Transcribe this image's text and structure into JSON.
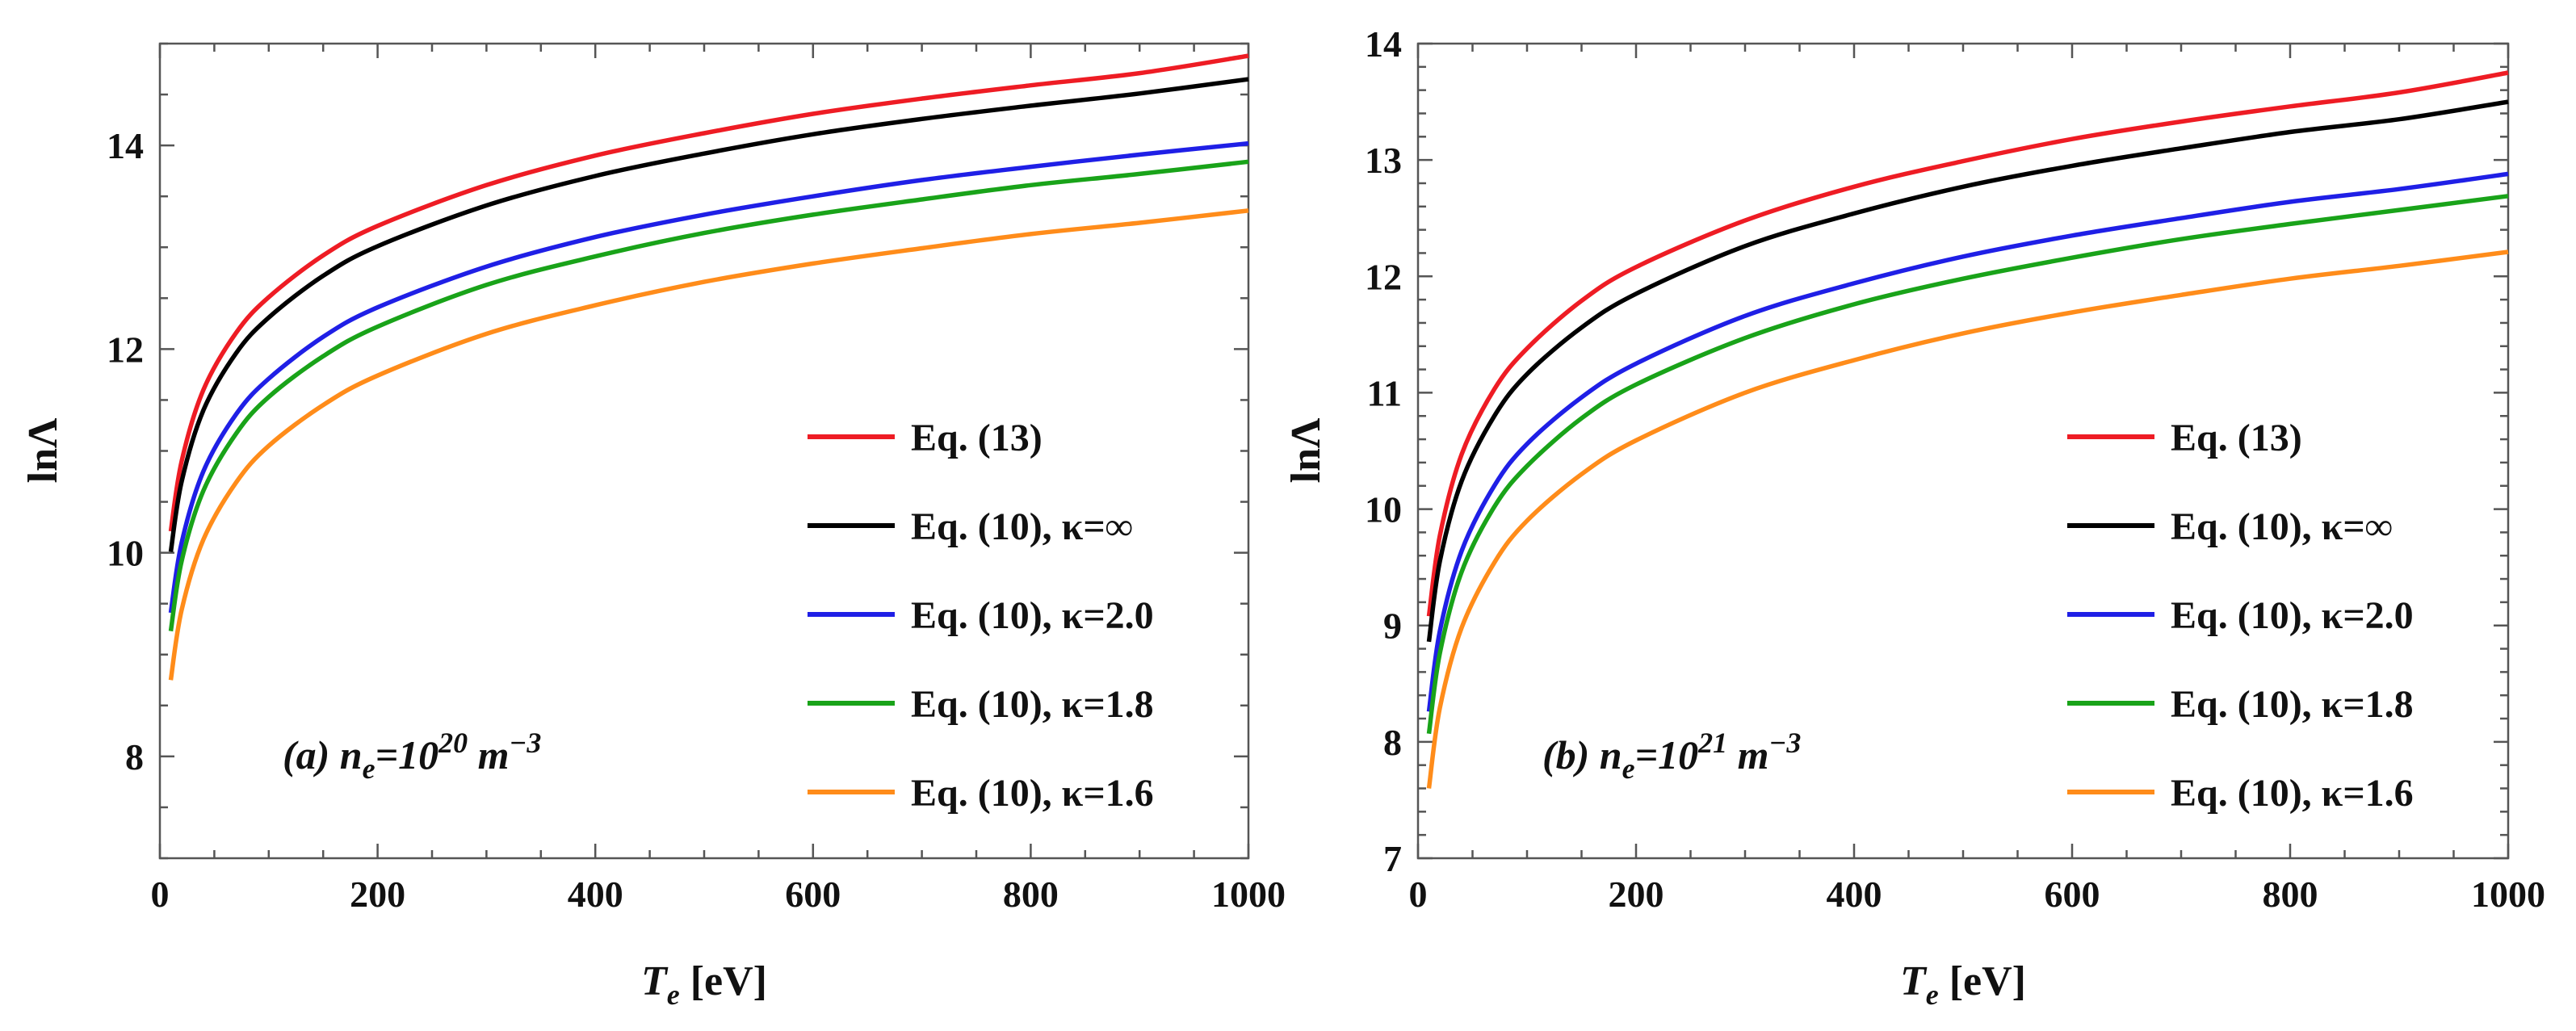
{
  "chart_data": [
    {
      "type": "line",
      "panel_label": {
        "prefix": "(a) n",
        "sub": "e",
        "mid": "=10",
        "sup": "20",
        "unit": " m",
        "unit_sup": "−3"
      },
      "xlabel": {
        "main": "T",
        "sub": "e",
        "rest": " [eV]"
      },
      "ylabel": "lnΛ",
      "xlim": [
        0,
        1000
      ],
      "ylim": [
        7,
        15
      ],
      "xticks": [
        0,
        200,
        400,
        600,
        800,
        1000
      ],
      "yticks": [
        8,
        10,
        12,
        14
      ],
      "x": [
        10,
        20,
        40,
        70,
        100,
        150,
        200,
        300,
        400,
        500,
        600,
        700,
        800,
        900,
        1000
      ],
      "legend_position": "lower-right",
      "series": [
        {
          "name": "Eq. (13)",
          "color": "#ee1c24",
          "values": [
            10.21,
            10.9,
            11.6,
            12.16,
            12.51,
            12.92,
            13.21,
            13.61,
            13.9,
            14.12,
            14.31,
            14.46,
            14.59,
            14.71,
            14.88
          ]
        },
        {
          "name": "Eq. (10), κ=∞",
          "color": "#000000",
          "values": [
            10.01,
            10.7,
            11.4,
            11.96,
            12.31,
            12.72,
            13.01,
            13.41,
            13.7,
            13.92,
            14.11,
            14.26,
            14.39,
            14.51,
            14.65
          ]
        },
        {
          "name": "Eq. (10), κ=2.0",
          "color": "#1f1fe6",
          "values": [
            9.41,
            10.1,
            10.8,
            11.36,
            11.71,
            12.12,
            12.41,
            12.81,
            13.1,
            13.32,
            13.5,
            13.66,
            13.79,
            13.91,
            14.02
          ]
        },
        {
          "name": "Eq. (10), κ=1.8",
          "color": "#19a319",
          "values": [
            9.23,
            9.92,
            10.61,
            11.17,
            11.53,
            11.93,
            12.22,
            12.63,
            12.91,
            13.14,
            13.32,
            13.47,
            13.61,
            13.72,
            13.84
          ]
        },
        {
          "name": "Eq. (10), κ=1.6",
          "color": "#ff8c1a",
          "values": [
            8.75,
            9.44,
            10.13,
            10.69,
            11.05,
            11.45,
            11.74,
            12.15,
            12.43,
            12.66,
            12.84,
            12.99,
            13.13,
            13.24,
            13.36
          ]
        }
      ]
    },
    {
      "type": "line",
      "panel_label": {
        "prefix": "(b) n",
        "sub": "e",
        "mid": "=10",
        "sup": "21",
        "unit": " m",
        "unit_sup": "−3"
      },
      "xlabel": {
        "main": "T",
        "sub": "e",
        "rest": " [eV]"
      },
      "ylabel": "lnΛ",
      "xlim": [
        0,
        1000
      ],
      "ylim": [
        7,
        14
      ],
      "xticks": [
        0,
        200,
        400,
        600,
        800,
        1000
      ],
      "yticks": [
        7,
        8,
        9,
        10,
        11,
        12,
        13,
        14
      ],
      "x": [
        10,
        20,
        40,
        70,
        100,
        150,
        200,
        300,
        400,
        500,
        600,
        700,
        800,
        900,
        1000
      ],
      "legend_position": "lower-right",
      "series": [
        {
          "name": "Eq. (13)",
          "color": "#ee1c24",
          "values": [
            9.08,
            9.77,
            10.47,
            11.03,
            11.38,
            11.79,
            12.08,
            12.48,
            12.77,
            12.99,
            13.18,
            13.33,
            13.46,
            13.58,
            13.75
          ]
        },
        {
          "name": "Eq. (10), κ=∞",
          "color": "#000000",
          "values": [
            8.86,
            9.55,
            10.24,
            10.8,
            11.16,
            11.56,
            11.85,
            12.26,
            12.54,
            12.77,
            12.95,
            13.1,
            13.24,
            13.35,
            13.5
          ]
        },
        {
          "name": "Eq. (10), κ=2.0",
          "color": "#1f1fe6",
          "values": [
            8.26,
            8.95,
            9.64,
            10.2,
            10.56,
            10.96,
            11.25,
            11.66,
            11.94,
            12.17,
            12.35,
            12.5,
            12.64,
            12.75,
            12.88
          ]
        },
        {
          "name": "Eq. (10), κ=1.8",
          "color": "#19a319",
          "values": [
            8.07,
            8.76,
            9.46,
            10.02,
            10.37,
            10.78,
            11.07,
            11.47,
            11.76,
            11.98,
            12.16,
            12.32,
            12.45,
            12.57,
            12.69
          ]
        },
        {
          "name": "Eq. (10), κ=1.6",
          "color": "#ff8c1a",
          "values": [
            7.6,
            8.29,
            8.98,
            9.54,
            9.9,
            10.3,
            10.59,
            11.0,
            11.28,
            11.51,
            11.69,
            11.84,
            11.98,
            12.09,
            12.21
          ]
        }
      ]
    }
  ]
}
